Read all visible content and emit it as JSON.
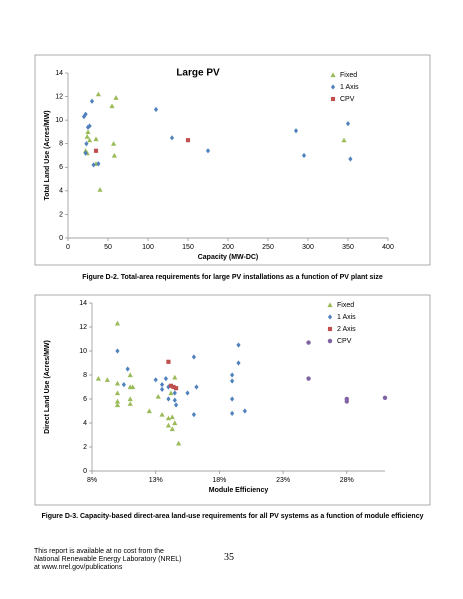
{
  "chart_data": [
    {
      "type": "scatter",
      "title": "Large PV",
      "x_label": "Capacity (MW-DC)",
      "y_label": "Total Land Use (Acres/MW)",
      "xlim": [
        0,
        400
      ],
      "xticks": [
        0,
        50,
        100,
        150,
        200,
        250,
        300,
        350,
        400
      ],
      "ylim": [
        0,
        14
      ],
      "yticks": [
        0,
        2,
        4,
        6,
        8,
        10,
        12,
        14
      ],
      "grid": false,
      "legend": "upper right",
      "series": [
        {
          "name": "Fixed",
          "color": "#9bbb59",
          "marker": "triangle",
          "x": [
            22,
            24,
            25,
            27,
            35,
            38,
            40,
            35,
            55,
            60,
            57,
            58,
            345,
            24
          ],
          "values": [
            7.4,
            8.6,
            9,
            8.3,
            8.4,
            12.2,
            4.1,
            6.3,
            11.2,
            11.9,
            8,
            7,
            8.3,
            7.2
          ]
        },
        {
          "name": "1 Axis",
          "color": "#4f81bd",
          "marker": "diamond",
          "x": [
            20,
            22,
            25,
            27,
            30,
            23,
            22,
            32,
            38,
            110,
            130,
            175,
            285,
            295,
            350,
            353
          ],
          "values": [
            10.3,
            10.5,
            9.4,
            9.5,
            11.6,
            8,
            7.2,
            6.2,
            6.3,
            10.9,
            8.5,
            7.4,
            9.1,
            7,
            9.7,
            6.7
          ]
        },
        {
          "name": "CPV",
          "color": "#c0504d",
          "marker": "square",
          "x": [
            35,
            150
          ],
          "values": [
            7.4,
            8.3
          ]
        }
      ]
    },
    {
      "type": "scatter",
      "x_label": "Module Efficiency",
      "y_label": "Direct Land Use (Acres/MW)",
      "xlim": [
        8,
        31
      ],
      "xticks": [
        {
          "value": 8,
          "label": "8%"
        },
        {
          "value": 13,
          "label": "13%"
        },
        {
          "value": 18,
          "label": "18%"
        },
        {
          "value": 23,
          "label": "23%"
        },
        {
          "value": 28,
          "label": "28%"
        }
      ],
      "ylim": [
        0,
        14
      ],
      "yticks": [
        0,
        2,
        4,
        6,
        8,
        10,
        12,
        14
      ],
      "grid": false,
      "legend": "upper right",
      "series": [
        {
          "name": "Fixed",
          "color": "#9bbb59",
          "marker": "triangle",
          "x": [
            8.5,
            9.2,
            10,
            10,
            10,
            10,
            10,
            11,
            11,
            11,
            11,
            11.2,
            12.5,
            13.2,
            13.5,
            14,
            14,
            14.3,
            14.5,
            14.5,
            14.3,
            14.8,
            14.2
          ],
          "values": [
            7.7,
            7.6,
            12.3,
            7.3,
            6.5,
            5.8,
            5.5,
            8,
            7,
            6,
            5.6,
            7,
            5,
            6.2,
            4.7,
            4.4,
            3.8,
            4.5,
            4,
            7.8,
            3.5,
            2.3,
            6.5
          ]
        },
        {
          "name": "1 Axis",
          "color": "#4f81bd",
          "marker": "diamond",
          "x": [
            10,
            10.8,
            10.5,
            13,
            13.5,
            13.8,
            14,
            13.5,
            14.5,
            14.5,
            14.6,
            14,
            15.5,
            16,
            16,
            16.2,
            19,
            19,
            19,
            19,
            19.5,
            19.5,
            20
          ],
          "values": [
            10,
            8.5,
            7.2,
            7.6,
            7.2,
            7.7,
            6,
            6.8,
            6.5,
            5.9,
            5.5,
            7,
            6.5,
            4.7,
            9.5,
            7,
            7.5,
            8,
            6,
            4.8,
            9,
            10.5,
            5
          ]
        },
        {
          "name": "2 Axis",
          "color": "#c0504d",
          "marker": "square",
          "x": [
            14,
            14.2,
            14.4,
            14.6
          ],
          "values": [
            9.1,
            7.1,
            7,
            6.9
          ]
        },
        {
          "name": "CPV",
          "color": "#8064a2",
          "marker": "circle",
          "x": [
            25,
            25,
            28,
            28,
            31
          ],
          "values": [
            10.7,
            7.7,
            6,
            5.8,
            6.1
          ]
        }
      ]
    }
  ],
  "captions": [
    "Figure D-2. Total-area requirements for large PV installations as a function of PV plant size",
    "Figure D-3. Capacity-based direct-area land-use requirements for all PV systems as a function of module efficiency"
  ],
  "footer": {
    "lines": [
      "This report is available at no cost from the",
      "National Renewable Energy Laboratory (NREL)",
      "at www.nrel.gov/publications"
    ],
    "page": "35"
  }
}
